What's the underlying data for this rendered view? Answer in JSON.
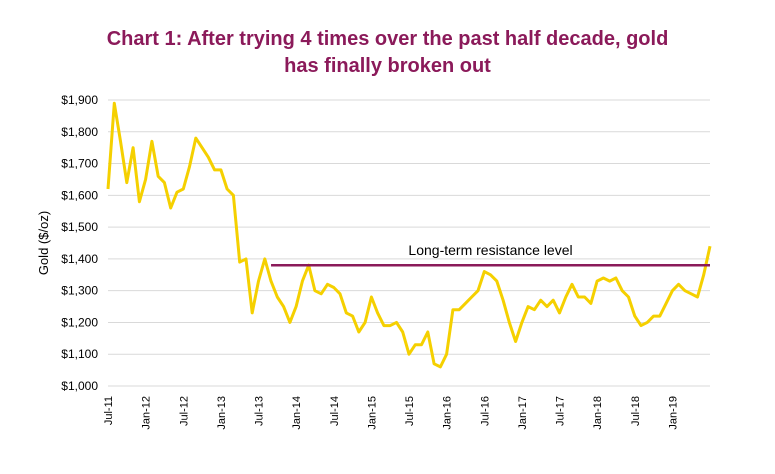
{
  "chart_data": {
    "type": "line",
    "title_line1": "Chart 1: After trying 4 times over the past half decade, gold",
    "title_line2": "has finally broken out",
    "xlabel": "",
    "ylabel": "Gold ($/oz)",
    "ylim": [
      1000,
      1900
    ],
    "yticks": [
      1000,
      1100,
      1200,
      1300,
      1400,
      1500,
      1600,
      1700,
      1800,
      1900
    ],
    "ytick_labels": [
      "$1,000",
      "$1,100",
      "$1,200",
      "$1,300",
      "$1,400",
      "$1,500",
      "$1,600",
      "$1,700",
      "$1,800",
      "$1,900"
    ],
    "xlim": [
      "2011-07",
      "2019-07"
    ],
    "xtick_labels": [
      "Jul-11",
      "Jan-12",
      "Jul-12",
      "Jan-13",
      "Jul-13",
      "Jan-14",
      "Jul-14",
      "Jan-15",
      "Jul-15",
      "Jan-16",
      "Jul-16",
      "Jan-17",
      "Jul-17",
      "Jan-18",
      "Jul-18",
      "Jan-19"
    ],
    "grid": true,
    "series": [
      {
        "color": "#f5d000",
        "x": [
          "2011-07",
          "2011-08",
          "2011-09",
          "2011-10",
          "2011-11",
          "2011-12",
          "2012-01",
          "2012-02",
          "2012-03",
          "2012-04",
          "2012-05",
          "2012-06",
          "2012-07",
          "2012-08",
          "2012-09",
          "2012-10",
          "2012-11",
          "2012-12",
          "2013-01",
          "2013-02",
          "2013-03",
          "2013-04",
          "2013-05",
          "2013-06",
          "2013-07",
          "2013-08",
          "2013-09",
          "2013-10",
          "2013-11",
          "2013-12",
          "2014-01",
          "2014-02",
          "2014-03",
          "2014-04",
          "2014-05",
          "2014-06",
          "2014-07",
          "2014-08",
          "2014-09",
          "2014-10",
          "2014-11",
          "2014-12",
          "2015-01",
          "2015-02",
          "2015-03",
          "2015-04",
          "2015-05",
          "2015-06",
          "2015-07",
          "2015-08",
          "2015-09",
          "2015-10",
          "2015-11",
          "2015-12",
          "2016-01",
          "2016-02",
          "2016-03",
          "2016-04",
          "2016-05",
          "2016-06",
          "2016-07",
          "2016-08",
          "2016-09",
          "2016-10",
          "2016-11",
          "2016-12",
          "2017-01",
          "2017-02",
          "2017-03",
          "2017-04",
          "2017-05",
          "2017-06",
          "2017-07",
          "2017-08",
          "2017-09",
          "2017-10",
          "2017-11",
          "2017-12",
          "2018-01",
          "2018-02",
          "2018-03",
          "2018-04",
          "2018-05",
          "2018-06",
          "2018-07",
          "2018-08",
          "2018-09",
          "2018-10",
          "2018-11",
          "2018-12",
          "2019-01",
          "2019-02",
          "2019-03",
          "2019-04",
          "2019-05",
          "2019-06",
          "2019-07"
        ],
        "values": [
          1620,
          1890,
          1770,
          1640,
          1750,
          1580,
          1650,
          1770,
          1660,
          1640,
          1560,
          1610,
          1620,
          1690,
          1780,
          1750,
          1720,
          1680,
          1680,
          1620,
          1600,
          1390,
          1400,
          1230,
          1330,
          1400,
          1330,
          1280,
          1250,
          1200,
          1250,
          1330,
          1380,
          1300,
          1290,
          1320,
          1310,
          1290,
          1230,
          1220,
          1170,
          1200,
          1280,
          1230,
          1190,
          1190,
          1200,
          1170,
          1100,
          1130,
          1130,
          1170,
          1070,
          1060,
          1100,
          1240,
          1240,
          1260,
          1280,
          1300,
          1360,
          1350,
          1330,
          1270,
          1200,
          1140,
          1200,
          1250,
          1240,
          1270,
          1250,
          1270,
          1230,
          1280,
          1320,
          1280,
          1280,
          1260,
          1330,
          1340,
          1330,
          1340,
          1300,
          1280,
          1220,
          1190,
          1200,
          1220,
          1220,
          1260,
          1300,
          1320,
          1300,
          1290,
          1280,
          1350,
          1440
        ]
      }
    ],
    "reference_line": {
      "label": "Long-term resistance level",
      "value": 1380,
      "x_start": "2013-09",
      "x_end": "2019-07",
      "color": "#8b1a5a"
    }
  }
}
